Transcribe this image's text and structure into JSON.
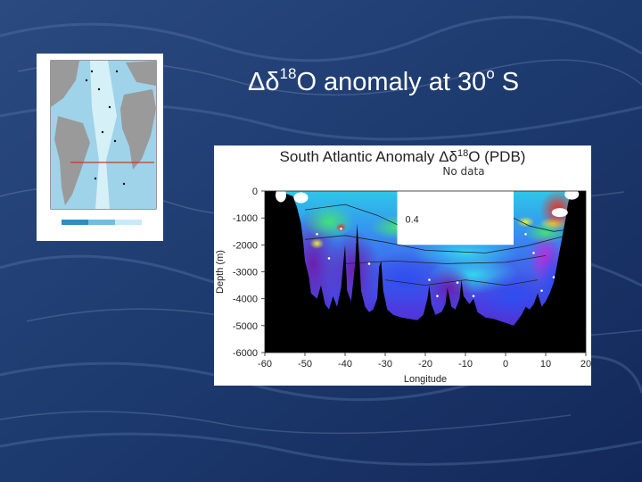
{
  "slide": {
    "title_main": "Δδ",
    "title_sup": "18",
    "title_rest": "O anomaly at 30",
    "title_deg": "o",
    "title_end": " S"
  },
  "chart_data": {
    "type": "heatmap",
    "title_main": "South Atlantic Anomaly Δδ",
    "title_sup": "18",
    "title_rest": "O (PDB)",
    "xlabel": "Longitude",
    "ylabel": "Depth (m)",
    "xlim": [
      -60,
      20
    ],
    "ylim": [
      -6000,
      0
    ],
    "xticks": [
      -60,
      -50,
      -40,
      -30,
      -20,
      -10,
      0,
      10,
      20
    ],
    "yticks": [
      0,
      -1000,
      -2000,
      -3000,
      -4000,
      -5000,
      -6000
    ],
    "annotations": [
      {
        "text": "No data",
        "x": -11,
        "y": 700
      },
      {
        "text": "0.4",
        "x": -25,
        "y": -1180
      }
    ],
    "nodata_region": {
      "x": [
        -27,
        2
      ],
      "y": [
        -2000,
        0
      ]
    },
    "samples": [
      {
        "x": -41,
        "y": -1400
      },
      {
        "x": -37,
        "y": -1900
      },
      {
        "x": -44,
        "y": -2500
      },
      {
        "x": -34,
        "y": -2700
      },
      {
        "x": -19,
        "y": -3300
      },
      {
        "x": -12,
        "y": -3400
      },
      {
        "x": -17,
        "y": -3900
      },
      {
        "x": -8,
        "y": -3900
      },
      {
        "x": 7,
        "y": -2300
      },
      {
        "x": 12,
        "y": -3200
      },
      {
        "x": 16,
        "y": -1100
      },
      {
        "x": -47,
        "y": -1600
      },
      {
        "x": 5,
        "y": -1600
      },
      {
        "x": 9,
        "y": -3700
      }
    ],
    "grid": false,
    "legend": "none"
  }
}
